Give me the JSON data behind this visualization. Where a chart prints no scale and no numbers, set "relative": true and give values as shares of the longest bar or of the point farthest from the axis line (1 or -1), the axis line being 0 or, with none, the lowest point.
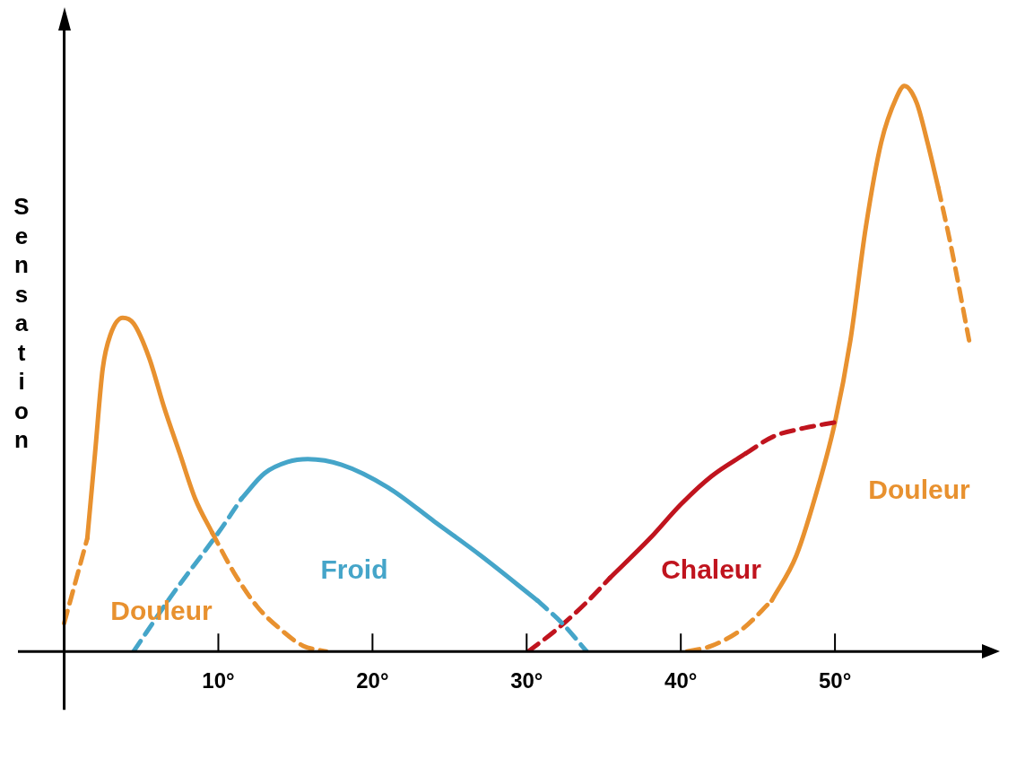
{
  "chart_data": {
    "type": "line",
    "relative": true,
    "ylabel": "Sensation",
    "xlim": [
      -3,
      60
    ],
    "xticks": [
      {
        "value": 10,
        "label": "10°"
      },
      {
        "value": 20,
        "label": "20°"
      },
      {
        "value": 30,
        "label": "30°"
      },
      {
        "value": 40,
        "label": "40°"
      },
      {
        "value": 50,
        "label": "50°"
      }
    ],
    "grid": false,
    "legend": false,
    "marker": "none",
    "tick_labels": "x",
    "series": [
      {
        "color": "#e8912f",
        "line_style": "dashed",
        "x": [
          0,
          0.7,
          1.5
        ],
        "values": [
          0.05,
          0.12,
          0.2
        ]
      },
      {
        "name": "Douleur",
        "color": "#e8912f",
        "line_style": "solid",
        "x": [
          1.5,
          2,
          2.5,
          3,
          3.8,
          4.5,
          5.5,
          6.5,
          7.5,
          8.5,
          9.6
        ],
        "values": [
          0.2,
          0.35,
          0.5,
          0.56,
          0.59,
          0.58,
          0.52,
          0.43,
          0.35,
          0.27,
          0.21
        ]
      },
      {
        "color": "#e8912f",
        "line_style": "dashed",
        "x": [
          9.6,
          11,
          12.5,
          14,
          15.5,
          17
        ],
        "values": [
          0.21,
          0.14,
          0.08,
          0.04,
          0.01,
          0
        ]
      },
      {
        "color": "#45a5c9",
        "line_style": "dashed",
        "x": [
          4.5,
          7,
          10,
          11.5
        ],
        "values": [
          0,
          0.1,
          0.21,
          0.27
        ]
      },
      {
        "name": "Froid",
        "color": "#45a5c9",
        "line_style": "solid",
        "x": [
          11.5,
          13,
          14.5,
          15.8,
          18,
          21,
          24,
          27,
          30.7
        ],
        "values": [
          0.27,
          0.315,
          0.335,
          0.34,
          0.33,
          0.29,
          0.23,
          0.17,
          0.09
        ]
      },
      {
        "color": "#45a5c9",
        "line_style": "dashed",
        "x": [
          30.7,
          32.3,
          33.9
        ],
        "values": [
          0.09,
          0.05,
          0
        ]
      },
      {
        "color": "#c0141e",
        "line_style": "dashed",
        "x": [
          30.1,
          32,
          34,
          35.4
        ],
        "values": [
          0,
          0.04,
          0.09,
          0.13
        ]
      },
      {
        "name": "Chaleur",
        "color": "#c0141e",
        "line_style": "solid",
        "x": [
          35.4,
          38,
          40,
          42,
          44.2
        ],
        "values": [
          0.13,
          0.2,
          0.26,
          0.31,
          0.35
        ]
      },
      {
        "color": "#c0141e",
        "line_style": "dashed",
        "x": [
          44.2,
          46,
          48,
          50
        ],
        "values": [
          0.35,
          0.38,
          0.395,
          0.405
        ]
      },
      {
        "color": "#e8912f",
        "line_style": "dashed",
        "x": [
          40.4,
          42,
          44,
          45.9
        ],
        "values": [
          0,
          0.01,
          0.04,
          0.09
        ]
      },
      {
        "name": "Douleur",
        "color": "#e8912f",
        "line_style": "solid",
        "x": [
          45.9,
          47.5,
          49,
          50,
          51,
          52,
          53,
          54,
          54.5,
          55.3,
          56,
          56.7
        ],
        "values": [
          0.09,
          0.17,
          0.3,
          0.405,
          0.55,
          0.75,
          0.9,
          0.98,
          1,
          0.97,
          0.9,
          0.82
        ]
      },
      {
        "color": "#e8912f",
        "line_style": "dashed",
        "x": [
          56.7,
          57.5,
          58.7
        ],
        "values": [
          0.82,
          0.72,
          0.55
        ]
      }
    ]
  }
}
